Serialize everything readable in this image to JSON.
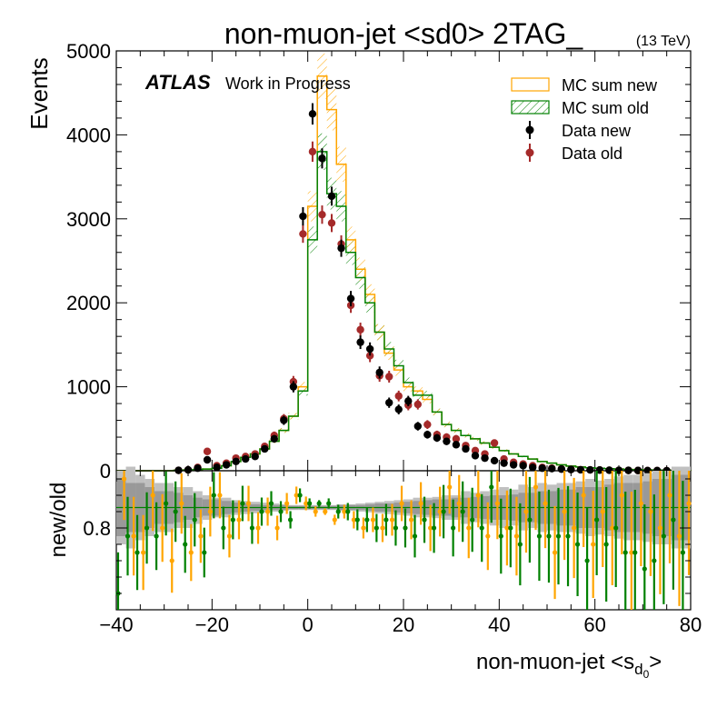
{
  "title": "non-muon-jet <sd0> 2TAG_",
  "energy": "(13 TeV)",
  "atlas_label": "ATLAS",
  "atlas_sublabel": "Work in Progress",
  "colors": {
    "mc_new": "#ffa500",
    "mc_old": "#008000",
    "data_new": "#000000",
    "data_old": "#a52a2a",
    "ratio_band_dark": "#999999",
    "ratio_band_light": "#c0c0c0"
  },
  "chart_data": [
    {
      "type": "histogram",
      "panel": "main",
      "ylabel": "Events",
      "xlim": [
        -40,
        80
      ],
      "ylim": [
        0,
        5000
      ],
      "yticks": [
        "0",
        "1000",
        "2000",
        "3000",
        "4000",
        "5000"
      ],
      "bin_width": 2,
      "legend": {
        "placement": "top-right",
        "entries": [
          "MC sum new",
          "MC sum old",
          "Data new",
          "Data old"
        ]
      },
      "bins": [
        -40,
        -38,
        -36,
        -34,
        -32,
        -30,
        -28,
        -26,
        -24,
        -22,
        -20,
        -18,
        -16,
        -14,
        -12,
        -10,
        -8,
        -6,
        -4,
        -2,
        0,
        2,
        4,
        6,
        8,
        10,
        12,
        14,
        16,
        18,
        20,
        22,
        24,
        26,
        28,
        30,
        32,
        34,
        36,
        38,
        40,
        42,
        44,
        46,
        48,
        50,
        52,
        54,
        56,
        58,
        60,
        62,
        64,
        66,
        68,
        70,
        72,
        74,
        76,
        78
      ],
      "series": [
        {
          "name": "MC sum new",
          "style": "step",
          "values": [
            0,
            0,
            0,
            0,
            0,
            0,
            5,
            10,
            15,
            20,
            30,
            60,
            110,
            160,
            200,
            260,
            350,
            480,
            650,
            1000,
            3150,
            4700,
            4300,
            3650,
            2750,
            2400,
            2100,
            1650,
            1400,
            1200,
            1000,
            950,
            850,
            700,
            550,
            480,
            420,
            380,
            330,
            280,
            240,
            200,
            170,
            140,
            110,
            90,
            70,
            55,
            45,
            35,
            30,
            25,
            20,
            15,
            12,
            10,
            8,
            6,
            4,
            2
          ]
        },
        {
          "name": "MC sum old",
          "style": "step",
          "values": [
            0,
            0,
            0,
            0,
            0,
            0,
            5,
            10,
            15,
            20,
            30,
            60,
            110,
            160,
            200,
            260,
            350,
            480,
            650,
            950,
            2750,
            3800,
            3300,
            3150,
            2600,
            2300,
            2000,
            1650,
            1450,
            1250,
            1050,
            900,
            900,
            700,
            550,
            480,
            420,
            380,
            330,
            280,
            240,
            200,
            170,
            140,
            110,
            90,
            70,
            55,
            45,
            35,
            30,
            25,
            20,
            15,
            12,
            10,
            8,
            6,
            4,
            2
          ]
        },
        {
          "name": "Data new",
          "style": "points",
          "values": [
            0,
            0,
            0,
            0,
            0,
            0,
            5,
            10,
            30,
            130,
            40,
            70,
            110,
            140,
            170,
            260,
            380,
            600,
            1000,
            3030,
            4250,
            3720,
            3270,
            2650,
            2050,
            1530,
            1450,
            1170,
            810,
            730,
            830,
            530,
            430,
            390,
            350,
            310,
            260,
            180,
            150,
            120,
            90,
            70,
            60,
            40,
            30,
            25,
            20,
            15,
            12,
            10,
            8,
            6,
            5,
            4,
            3,
            2,
            2,
            1,
            1,
            0
          ]
        },
        {
          "name": "Data old",
          "style": "points",
          "values": [
            0,
            0,
            0,
            0,
            0,
            0,
            5,
            10,
            40,
            230,
            60,
            90,
            150,
            170,
            200,
            290,
            420,
            620,
            1060,
            2820,
            3800,
            3050,
            2950,
            2700,
            1970,
            1680,
            1370,
            1130,
            1120,
            890,
            780,
            790,
            550,
            430,
            400,
            380,
            300,
            240,
            200,
            330,
            140,
            100,
            80,
            60,
            40,
            30,
            20,
            15,
            12,
            10,
            8,
            6,
            5,
            4,
            3,
            2,
            2,
            1,
            1,
            0
          ]
        }
      ]
    },
    {
      "type": "ratio",
      "panel": "ratio",
      "ylabel": "new/old",
      "xlabel": "non-muon-jet <s",
      "xlabel_sub": "d",
      "xlabel_subsub": "0",
      "xlabel_tail": ">",
      "xlim": [
        -40,
        80
      ],
      "ylim": [
        0.7,
        0.87
      ],
      "yticks": [
        "0.8"
      ],
      "xticks": [
        "−40",
        "−20",
        "0",
        "20",
        "40",
        "60",
        "80"
      ],
      "series": [
        {
          "name": "Data",
          "color": "#ffa500",
          "x": [
            -39,
            -37,
            -35,
            -33,
            -31,
            -29,
            -27,
            -25,
            -23,
            -21,
            -19,
            -17,
            -15,
            -13,
            -11,
            -9,
            -7,
            -5,
            -3,
            -1,
            1,
            3,
            5,
            7,
            9,
            11,
            13,
            15,
            17,
            19,
            21,
            23,
            25,
            27,
            29,
            31,
            33,
            35,
            37,
            39,
            41,
            43,
            45,
            47,
            49,
            51,
            53,
            55,
            57,
            59,
            61,
            63,
            65,
            67,
            69,
            71,
            73,
            75,
            77,
            79
          ],
          "y": [
            0.86,
            0.79,
            0.77,
            0.84,
            0.8,
            0.76,
            0.83,
            0.77,
            0.79,
            0.82,
            0.84,
            0.79,
            0.81,
            0.83,
            0.8,
            0.82,
            0.8,
            0.83,
            0.84,
            0.83,
            0.82,
            0.82,
            0.81,
            0.82,
            0.81,
            0.8,
            0.81,
            0.8,
            0.81,
            0.83,
            0.81,
            0.83,
            0.8,
            0.82,
            0.85,
            0.83,
            0.8,
            0.84,
            0.79,
            0.83,
            0.8,
            0.79,
            0.82,
            0.85,
            0.83,
            0.77,
            0.82,
            0.8,
            0.84,
            0.78,
            0.82,
            0.8,
            0.84,
            0.77,
            0.83,
            0.82,
            0.8,
            0.84,
            0.79,
            0.83
          ]
        },
        {
          "name": "MC",
          "color": "#008000",
          "x": [
            -39,
            -37,
            -35,
            -33,
            -31,
            -29,
            -27,
            -25,
            -23,
            -21,
            -19,
            -17,
            -15,
            -13,
            -11,
            -9,
            -7,
            -5,
            -3,
            -1,
            1,
            3,
            5,
            7,
            9,
            11,
            13,
            15,
            17,
            19,
            21,
            23,
            25,
            27,
            29,
            31,
            33,
            35,
            37,
            39,
            41,
            43,
            45,
            47,
            49,
            51,
            53,
            55,
            57,
            59,
            61,
            63,
            65,
            67,
            69,
            71,
            73,
            75,
            77,
            79
          ],
          "y": [
            0.72,
            0.79,
            0.77,
            0.8,
            0.79,
            0.83,
            0.82,
            0.78,
            0.81,
            0.77,
            0.84,
            0.8,
            0.81,
            0.83,
            0.8,
            0.82,
            0.83,
            0.82,
            0.81,
            0.84,
            0.83,
            0.83,
            0.83,
            0.82,
            0.82,
            0.81,
            0.81,
            0.8,
            0.81,
            0.8,
            0.8,
            0.79,
            0.81,
            0.8,
            0.82,
            0.8,
            0.82,
            0.81,
            0.8,
            0.85,
            0.79,
            0.8,
            0.78,
            0.81,
            0.79,
            0.79,
            0.79,
            0.79,
            0.78,
            0.76,
            0.81,
            0.78,
            0.8,
            0.77,
            0.77,
            0.75,
            0.76,
            0.79,
            0.81,
            0.77
          ]
        }
      ],
      "band": {
        "center": 0.825,
        "half_width_dark": [
          0.035,
          0.03,
          0.03,
          0.025,
          0.02,
          0.02,
          0.018,
          0.015,
          0.012,
          0.01,
          0.01,
          0.008,
          0.006,
          0.005,
          0.004,
          0.003,
          0.003,
          0.003,
          0.002,
          0.002,
          0.002,
          0.002,
          0.002,
          0.003,
          0.003,
          0.003,
          0.004,
          0.005,
          0.005,
          0.006,
          0.007,
          0.008,
          0.009,
          0.01,
          0.01,
          0.012,
          0.012,
          0.013,
          0.014,
          0.015,
          0.015,
          0.016,
          0.018,
          0.018,
          0.02,
          0.02,
          0.022,
          0.022,
          0.025,
          0.025,
          0.025,
          0.028,
          0.03,
          0.03,
          0.03,
          0.032,
          0.035,
          0.035,
          0.04,
          0.04
        ],
        "half_width_light": [
          0.045,
          0.05,
          0.04,
          0.035,
          0.03,
          0.03,
          0.025,
          0.025,
          0.02,
          0.015,
          0.012,
          0.012,
          0.009,
          0.008,
          0.007,
          0.006,
          0.005,
          0.004,
          0.003,
          0.003,
          0.003,
          0.003,
          0.003,
          0.004,
          0.004,
          0.005,
          0.006,
          0.007,
          0.008,
          0.009,
          0.01,
          0.012,
          0.012,
          0.013,
          0.015,
          0.015,
          0.02,
          0.018,
          0.02,
          0.022,
          0.025,
          0.022,
          0.028,
          0.025,
          0.03,
          0.028,
          0.03,
          0.03,
          0.032,
          0.035,
          0.033,
          0.035,
          0.038,
          0.04,
          0.04,
          0.042,
          0.045,
          0.045,
          0.05,
          0.05
        ]
      }
    }
  ]
}
